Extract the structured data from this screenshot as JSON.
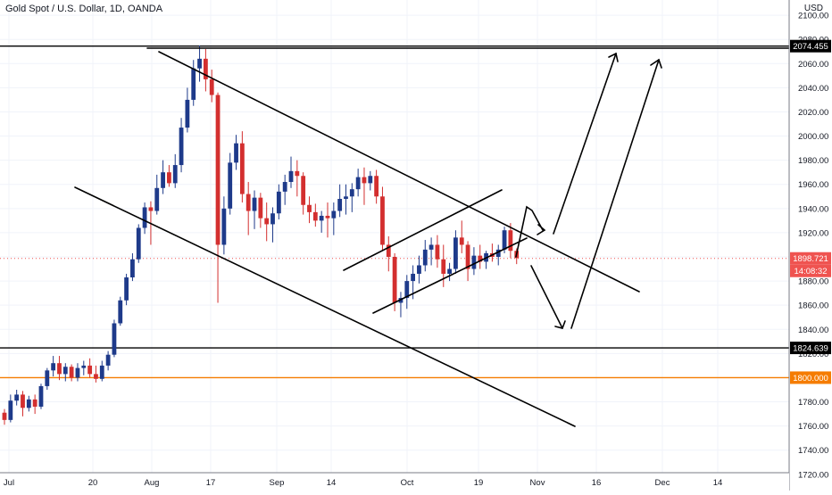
{
  "header": {
    "title": "Gold Spot / U.S. Dollar, 1D, OANDA"
  },
  "axis": {
    "currency": "USD"
  },
  "colors": {
    "up": "#1e3a8a",
    "down": "#d32f2f",
    "grid": "#f0f3fa",
    "line": "#000000",
    "orange": "#f57c00",
    "price_dotted": "#ef5350",
    "axis_text": "#131722"
  },
  "labels": {
    "resistance": "2074.455",
    "support": "1824.639",
    "orange": "1800.000",
    "price": "1898.721",
    "countdown": "14:08:32"
  },
  "chart_data": {
    "type": "candlestick",
    "symbol": "Gold Spot / U.S. Dollar",
    "interval": "1D",
    "source": "OANDA",
    "ylim": [
      1715,
      2115
    ],
    "y_ticks": [
      1720,
      1740,
      1760,
      1780,
      1800,
      1820,
      1840,
      1860,
      1880,
      1900,
      1920,
      1940,
      1960,
      1980,
      2000,
      2020,
      2040,
      2060,
      2080,
      2100
    ],
    "x_tick_labels": [
      "Jul",
      "20",
      "Aug",
      "17",
      "Sep",
      "14",
      "Oct",
      "19",
      "Nov",
      "16",
      "Dec",
      "14"
    ],
    "horizontal_levels": [
      {
        "value": 2074.455,
        "color": "#000000"
      },
      {
        "value": 1824.639,
        "color": "#000000"
      },
      {
        "value": 1800.0,
        "color": "#f57c00"
      }
    ],
    "last_price": 1898.721,
    "candles": [
      [
        1771,
        1774,
        1761,
        1765
      ],
      [
        1765,
        1786,
        1763,
        1781
      ],
      [
        1781,
        1790,
        1777,
        1786
      ],
      [
        1786,
        1789,
        1768,
        1775
      ],
      [
        1775,
        1785,
        1772,
        1782
      ],
      [
        1782,
        1786,
        1770,
        1776
      ],
      [
        1776,
        1795,
        1774,
        1793
      ],
      [
        1793,
        1808,
        1790,
        1806
      ],
      [
        1806,
        1818,
        1801,
        1812
      ],
      [
        1812,
        1818,
        1798,
        1803
      ],
      [
        1803,
        1812,
        1797,
        1809
      ],
      [
        1809,
        1811,
        1797,
        1800
      ],
      [
        1800,
        1812,
        1797,
        1808
      ],
      [
        1808,
        1814,
        1802,
        1810
      ],
      [
        1810,
        1816,
        1800,
        1803
      ],
      [
        1803,
        1810,
        1796,
        1799
      ],
      [
        1799,
        1814,
        1797,
        1810
      ],
      [
        1810,
        1822,
        1806,
        1819
      ],
      [
        1819,
        1848,
        1817,
        1845
      ],
      [
        1845,
        1867,
        1843,
        1864
      ],
      [
        1864,
        1886,
        1860,
        1883
      ],
      [
        1883,
        1903,
        1880,
        1898
      ],
      [
        1898,
        1927,
        1895,
        1924
      ],
      [
        1924,
        1945,
        1919,
        1941
      ],
      [
        1941,
        1946,
        1910,
        1938
      ],
      [
        1938,
        1968,
        1935,
        1957
      ],
      [
        1957,
        1980,
        1952,
        1970
      ],
      [
        1970,
        1976,
        1958,
        1961
      ],
      [
        1961,
        1985,
        1957,
        1976
      ],
      [
        1976,
        2015,
        1970,
        2007
      ],
      [
        2007,
        2040,
        2003,
        2030
      ],
      [
        2030,
        2063,
        2025,
        2056
      ],
      [
        2056,
        2075,
        2045,
        2064
      ],
      [
        2064,
        2072,
        2037,
        2047
      ],
      [
        2047,
        2055,
        2028,
        2034
      ],
      [
        2034,
        2036,
        1862,
        1910
      ],
      [
        1910,
        1950,
        1902,
        1940
      ],
      [
        1940,
        1986,
        1935,
        1978
      ],
      [
        1978,
        2001,
        1972,
        1994
      ],
      [
        1994,
        2004,
        1945,
        1952
      ],
      [
        1952,
        1962,
        1918,
        1938
      ],
      [
        1938,
        1955,
        1923,
        1949
      ],
      [
        1949,
        1953,
        1924,
        1932
      ],
      [
        1932,
        1945,
        1913,
        1927
      ],
      [
        1927,
        1941,
        1912,
        1936
      ],
      [
        1936,
        1960,
        1931,
        1954
      ],
      [
        1954,
        1968,
        1943,
        1962
      ],
      [
        1962,
        1983,
        1957,
        1971
      ],
      [
        1971,
        1980,
        1950,
        1967
      ],
      [
        1967,
        1970,
        1935,
        1943
      ],
      [
        1943,
        1950,
        1928,
        1937
      ],
      [
        1937,
        1944,
        1925,
        1930
      ],
      [
        1930,
        1938,
        1920,
        1934
      ],
      [
        1934,
        1945,
        1916,
        1932
      ],
      [
        1932,
        1945,
        1918,
        1938
      ],
      [
        1938,
        1960,
        1933,
        1948
      ],
      [
        1948,
        1960,
        1935,
        1950
      ],
      [
        1950,
        1961,
        1937,
        1956
      ],
      [
        1956,
        1973,
        1950,
        1966
      ],
      [
        1966,
        1974,
        1943,
        1961
      ],
      [
        1961,
        1971,
        1955,
        1967
      ],
      [
        1967,
        1972,
        1944,
        1950
      ],
      [
        1950,
        1958,
        1905,
        1910
      ],
      [
        1910,
        1917,
        1888,
        1900
      ],
      [
        1900,
        1903,
        1855,
        1862
      ],
      [
        1862,
        1871,
        1850,
        1866
      ],
      [
        1866,
        1885,
        1857,
        1880
      ],
      [
        1880,
        1893,
        1865,
        1886
      ],
      [
        1886,
        1901,
        1878,
        1893
      ],
      [
        1893,
        1914,
        1888,
        1906
      ],
      [
        1906,
        1916,
        1893,
        1910
      ],
      [
        1910,
        1918,
        1891,
        1898
      ],
      [
        1898,
        1910,
        1875,
        1886
      ],
      [
        1886,
        1895,
        1880,
        1890
      ],
      [
        1890,
        1922,
        1886,
        1916
      ],
      [
        1916,
        1930,
        1903,
        1910
      ],
      [
        1910,
        1913,
        1880,
        1890
      ],
      [
        1890,
        1908,
        1885,
        1901
      ],
      [
        1901,
        1910,
        1890,
        1896
      ],
      [
        1896,
        1905,
        1890,
        1903
      ],
      [
        1903,
        1911,
        1896,
        1900
      ],
      [
        1900,
        1910,
        1893,
        1906
      ],
      [
        1906,
        1925,
        1903,
        1922
      ],
      [
        1922,
        1928,
        1899,
        1905
      ],
      [
        1905,
        1907,
        1894,
        1899
      ]
    ]
  }
}
